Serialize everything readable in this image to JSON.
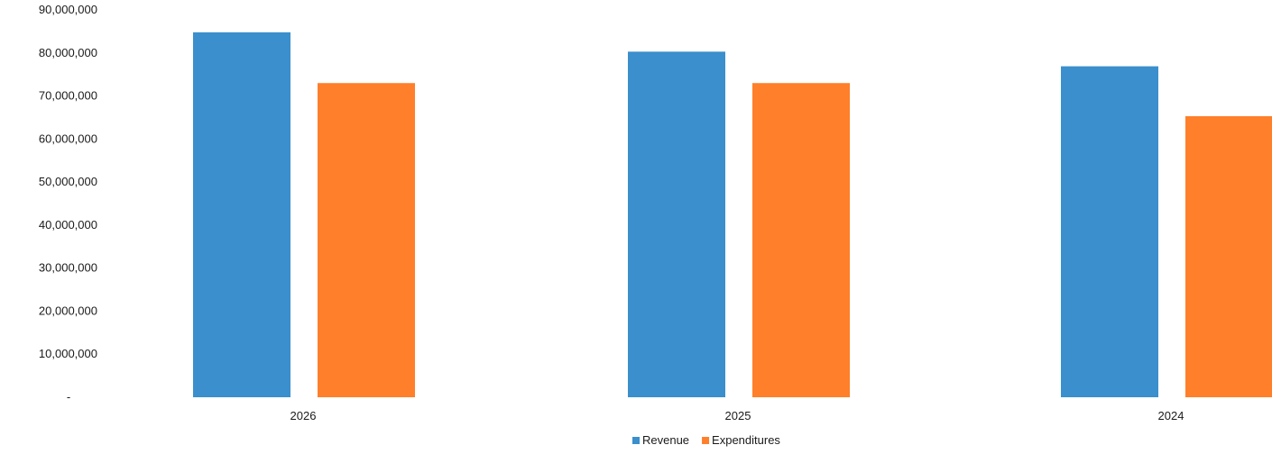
{
  "chart_data": {
    "type": "bar",
    "title": "",
    "xlabel": "",
    "ylabel": "",
    "categories": [
      "2026",
      "2025",
      "2024"
    ],
    "series": [
      {
        "name": "Revenue",
        "color": "#3a8fcc",
        "values": [
          84800000,
          80300000,
          76900000
        ]
      },
      {
        "name": "Expenditures",
        "color": "#ff7f2a",
        "values": [
          73000000,
          73000000,
          65300000
        ]
      }
    ],
    "ylim": [
      0,
      90000000
    ],
    "y_ticks": [
      {
        "value": 0,
        "label": "-"
      },
      {
        "value": 10000000,
        "label": "10,000,000"
      },
      {
        "value": 20000000,
        "label": "20,000,000"
      },
      {
        "value": 30000000,
        "label": "30,000,000"
      },
      {
        "value": 40000000,
        "label": "40,000,000"
      },
      {
        "value": 50000000,
        "label": "50,000,000"
      },
      {
        "value": 60000000,
        "label": "60,000,000"
      },
      {
        "value": 70000000,
        "label": "70,000,000"
      },
      {
        "value": 80000000,
        "label": "80,000,000"
      },
      {
        "value": 90000000,
        "label": "90,000,000"
      }
    ],
    "grid": false,
    "legend_position": "bottom-center"
  }
}
